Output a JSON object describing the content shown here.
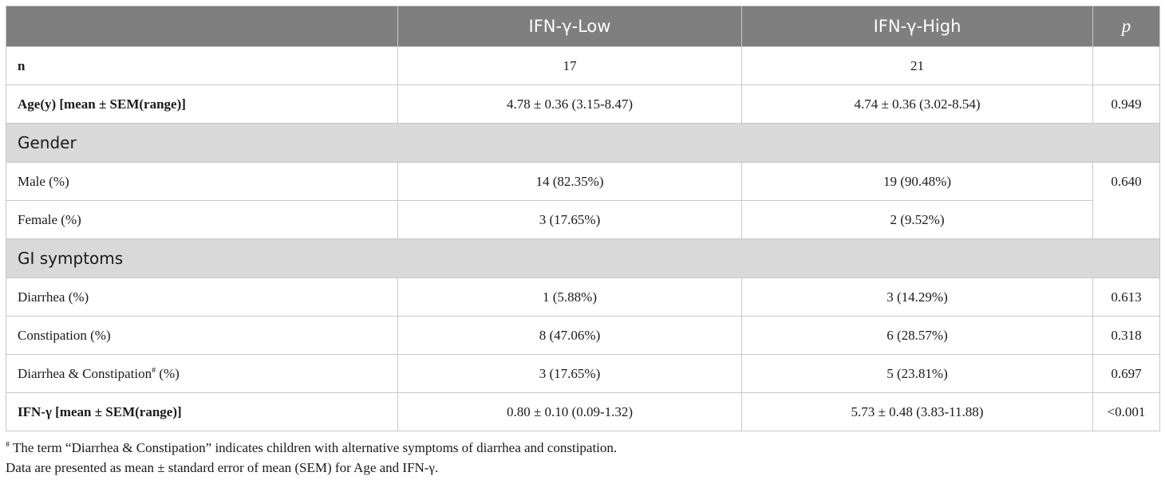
{
  "table": {
    "headers": [
      "",
      "IFN-γ-Low",
      "IFN-γ-High",
      "p"
    ],
    "rows": [
      {
        "label": "n",
        "low": "17",
        "high": "21",
        "p": ""
      },
      {
        "label": "Age(y) [mean ± SEM(range)]",
        "low": "4.78 ± 0.36 (3.15-8.47)",
        "high": "4.74 ± 0.36 (3.02-8.54)",
        "p": "0.949"
      },
      {
        "section": "Gender"
      },
      {
        "label": "Male (%)",
        "low": "14 (82.35%)",
        "high": "19 (90.48%)",
        "p": "0.640"
      },
      {
        "label": "Female (%)",
        "low": "3 (17.65%)",
        "high": "2 (9.52%)"
      },
      {
        "section": "GI symptoms"
      },
      {
        "label": "Diarrhea (%)",
        "low": "1 (5.88%)",
        "high": "3 (14.29%)",
        "p": "0.613"
      },
      {
        "label": "Constipation (%)",
        "low": "8 (47.06%)",
        "high": "6 (28.57%)",
        "p": "0.318"
      },
      {
        "label_main": "Diarrhea & Constipation",
        "label_sup": "#",
        "label_suffix": " (%)",
        "low": "3 (17.65%)",
        "high": "5 (23.81%)",
        "p": "0.697"
      },
      {
        "label": "IFN-γ [mean ± SEM(range)]",
        "low": "0.80 ± 0.10 (0.09-1.32)",
        "high": "5.73 ± 0.48 (3.83-11.88)",
        "p": "<0.001"
      }
    ]
  },
  "footnotes": {
    "note1_mark": "#",
    "note1_text": " The term “Diarrhea & Constipation” indicates children with alternative symptoms of diarrhea and constipation.",
    "note2_text": "Data are presented as mean ± standard error of mean (SEM) for Age and IFN-γ."
  }
}
